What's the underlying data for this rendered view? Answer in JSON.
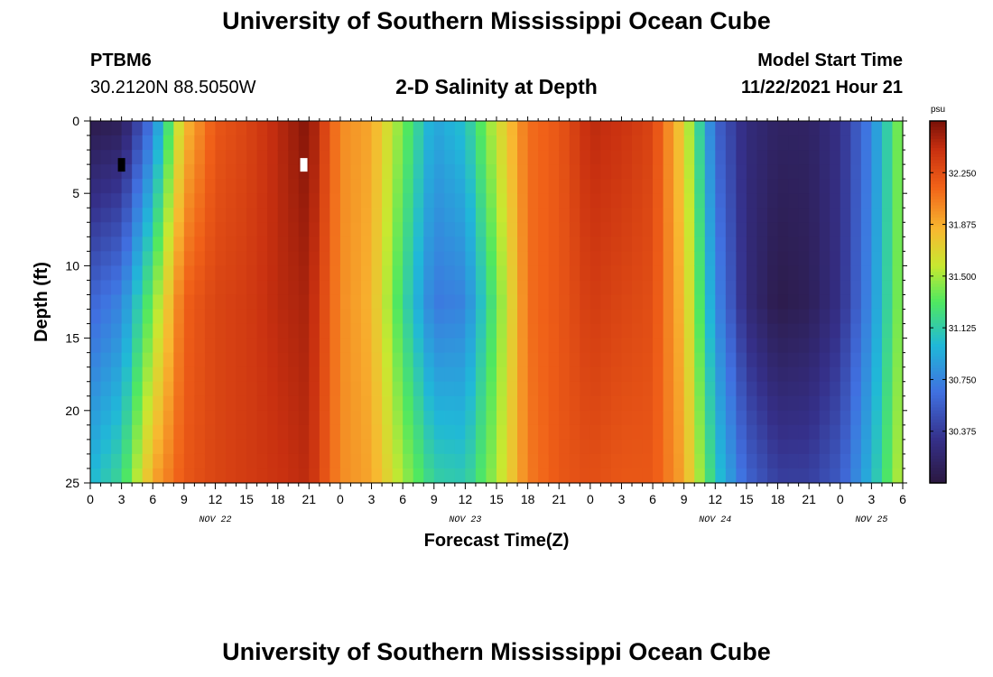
{
  "header": {
    "title": "University of Southern Mississippi Ocean Cube",
    "station": "PTBM6",
    "coordinates": "30.2120N  88.5050W",
    "subtitle": "2-D Salinity at Depth",
    "start_label": "Model Start Time",
    "start_value": "11/22/2021 Hour 21"
  },
  "footer": {
    "title": "University of Southern Mississippi Ocean Cube"
  },
  "chart_data": {
    "type": "heatmap",
    "title": "2-D Salinity at Depth",
    "xlabel": "Forecast Time(Z)",
    "ylabel": "Depth (ft)",
    "x_tick_labels": [
      "0",
      "3",
      "6",
      "9",
      "12",
      "15",
      "18",
      "21",
      "0",
      "3",
      "6",
      "9",
      "12",
      "15",
      "18",
      "21",
      "0",
      "3",
      "6",
      "9",
      "12",
      "15",
      "18",
      "21",
      "0",
      "3",
      "6"
    ],
    "x_range_hours": [
      0,
      78
    ],
    "day_labels": [
      {
        "label": "NOV 22",
        "hour": 12
      },
      {
        "label": "NOV 23",
        "hour": 36
      },
      {
        "label": "NOV 24",
        "hour": 60
      },
      {
        "label": "NOV 25",
        "hour": 75
      }
    ],
    "y_range": [
      0,
      25
    ],
    "y_ticks": [
      0,
      5,
      10,
      15,
      20,
      25
    ],
    "colorbar": {
      "units": "psu",
      "range": [
        30.0,
        32.625
      ],
      "ticks": [
        "32.250",
        "31.875",
        "31.500",
        "31.125",
        "30.750",
        "30.375"
      ]
    },
    "time_anchor_hours": [
      0,
      3,
      6,
      9,
      12,
      15,
      18,
      21,
      24,
      27,
      30,
      33,
      36,
      39,
      42,
      45,
      48,
      51,
      54,
      57,
      60,
      63,
      66,
      69,
      72,
      75,
      78
    ],
    "surface_salinity_psu": [
      30.05,
      30.1,
      30.7,
      31.8,
      32.2,
      32.3,
      32.45,
      32.6,
      32.0,
      31.9,
      31.4,
      30.9,
      31.05,
      31.6,
      32.1,
      32.2,
      32.45,
      32.4,
      32.3,
      31.7,
      30.6,
      30.25,
      30.15,
      30.15,
      30.3,
      30.75,
      31.5
    ],
    "mid_salinity_psu": [
      30.6,
      30.75,
      31.4,
      32.15,
      32.3,
      32.35,
      32.45,
      32.5,
      32.0,
      31.85,
      31.2,
      30.7,
      30.75,
      31.35,
      32.1,
      32.2,
      32.35,
      32.3,
      32.25,
      31.8,
      30.8,
      30.25,
      30.05,
      30.1,
      30.3,
      30.8,
      31.5
    ],
    "bottom_salinity_psu": [
      31.0,
      31.2,
      31.9,
      32.2,
      32.3,
      32.35,
      32.4,
      32.45,
      32.0,
      31.9,
      31.5,
      31.15,
      31.1,
      31.5,
      32.05,
      32.2,
      32.25,
      32.2,
      32.2,
      31.9,
      31.1,
      30.6,
      30.4,
      30.4,
      30.55,
      31.0,
      31.6
    ],
    "markers": [
      {
        "hour": 3,
        "depth_ft": 3,
        "color": "#000000"
      },
      {
        "hour": 20.5,
        "depth_ft": 3,
        "color": "#ffffff"
      }
    ]
  }
}
